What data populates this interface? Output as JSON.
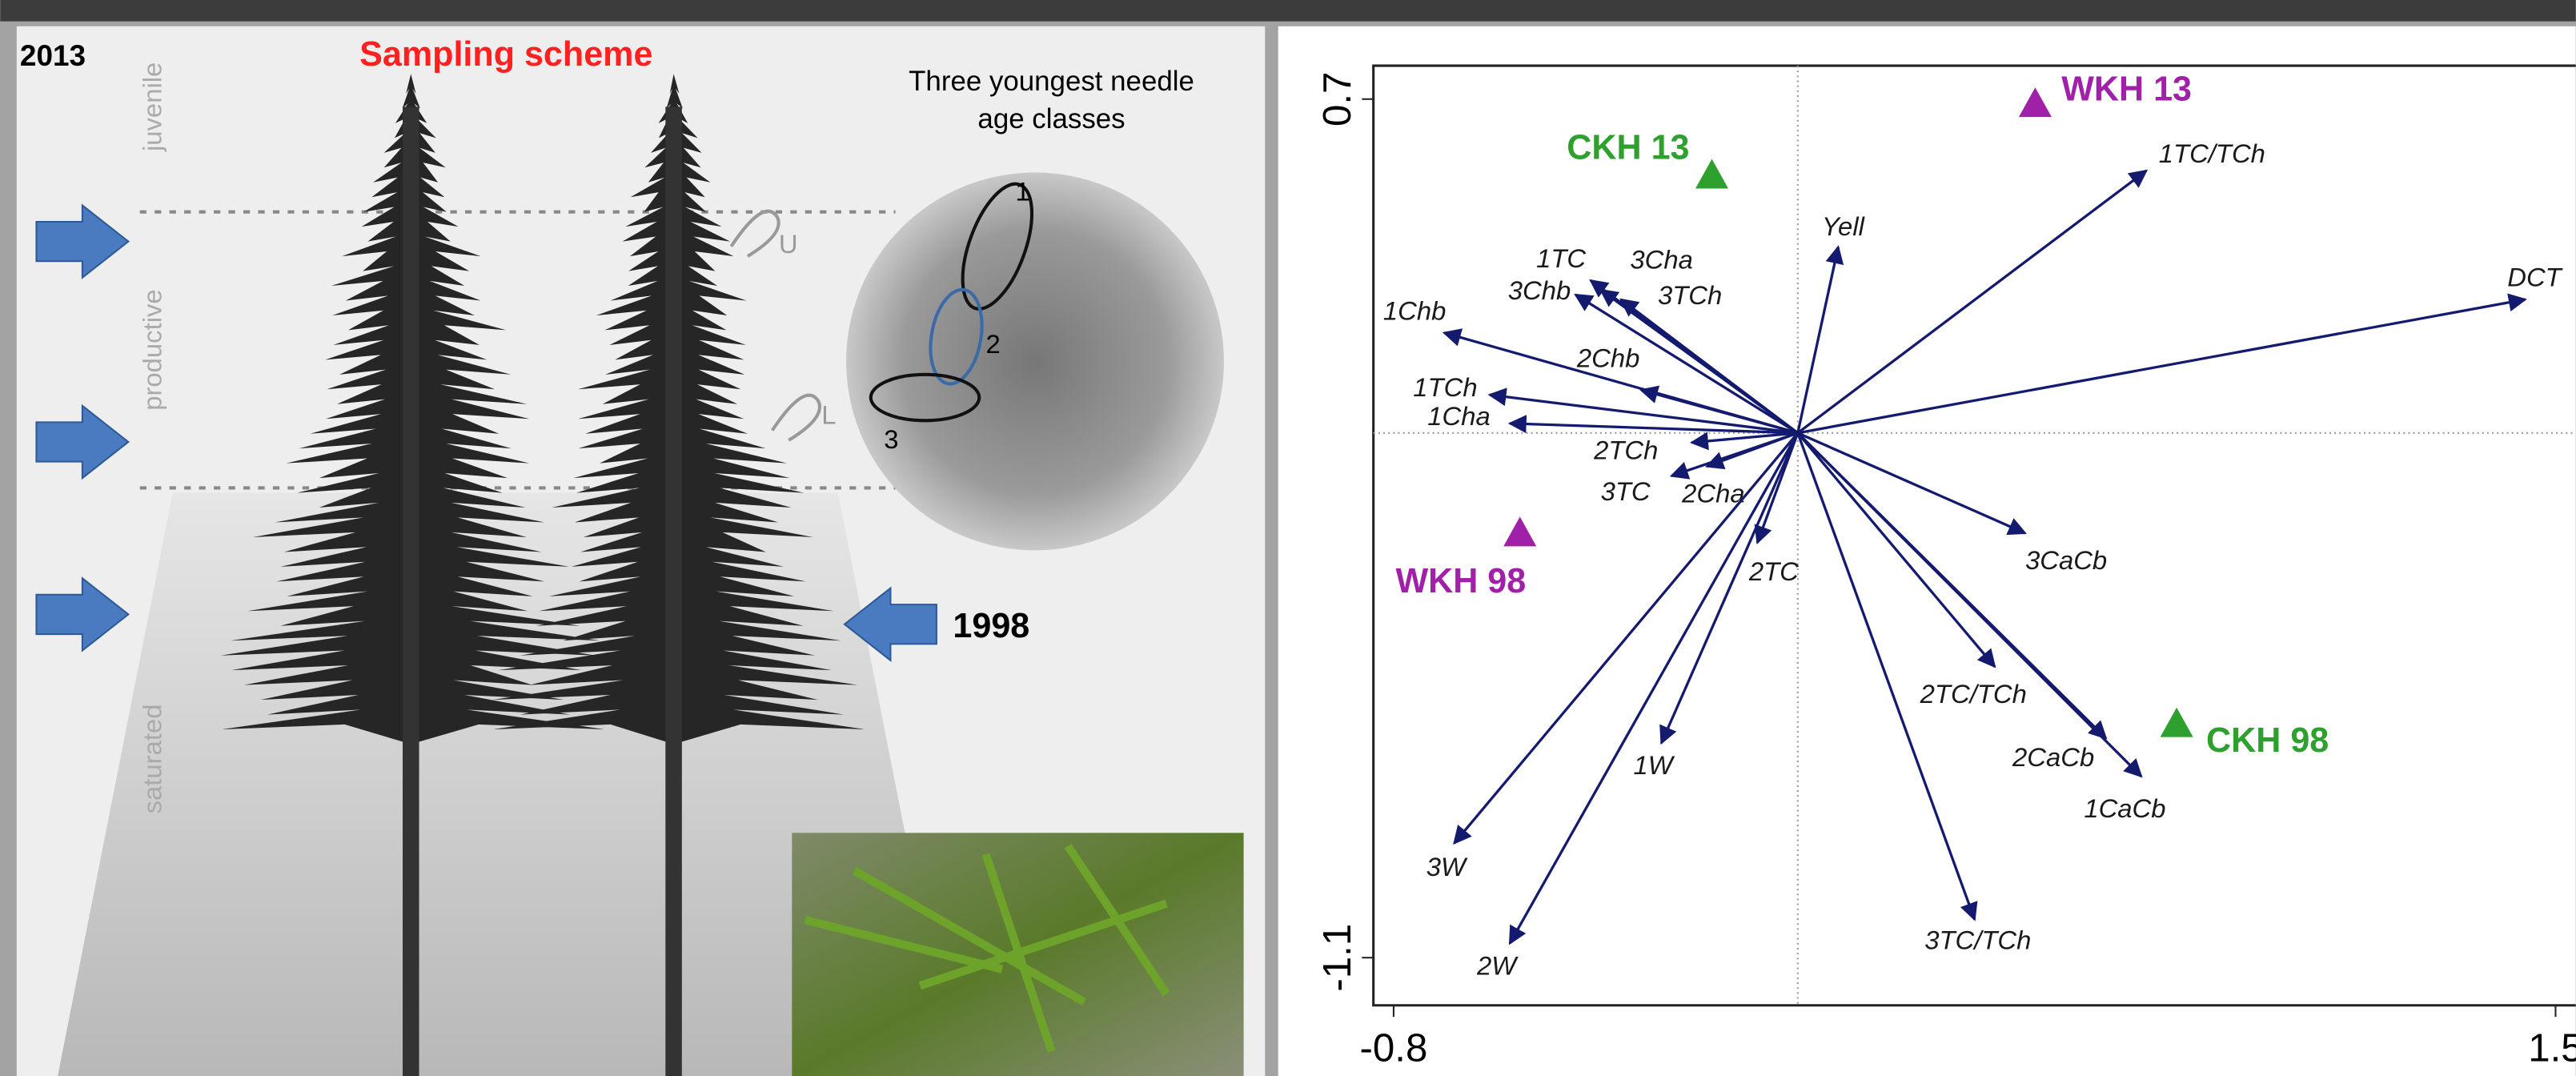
{
  "left_panel": {
    "year_top": "2013",
    "title": "Sampling scheme",
    "caption": [
      "Three youngest needle",
      "age classes"
    ],
    "zones": [
      "juvenile",
      "productive",
      "saturated"
    ],
    "crown_marks": [
      "U",
      "L"
    ],
    "needle_classes": [
      "1",
      "2",
      "3"
    ],
    "year_arrow": "1998"
  },
  "chart_data": {
    "type": "biplot",
    "xlim": [
      -0.84,
      1.54
    ],
    "ylim": [
      -1.2,
      0.77
    ],
    "xticks": [
      -0.8,
      1.5
    ],
    "yticks": [
      -1.1,
      0.7
    ],
    "zero_lines": true,
    "vectors": {
      "color": "#141a6e",
      "labels": [
        "1TC/TCh",
        "DCT",
        "Yell",
        "1TC",
        "3Cha",
        "3Chb",
        "3TCh",
        "1Chb",
        "2Chb",
        "1TCh",
        "1Cha",
        "2TCh",
        "3TC",
        "2Cha",
        "2TC",
        "3CaCb",
        "2TC/TCh",
        "2CaCb",
        "1CaCb",
        "3TC/TCh",
        "1W",
        "3W",
        "2W"
      ],
      "x": [
        0.69,
        1.44,
        0.08,
        -0.41,
        -0.39,
        -0.44,
        -0.35,
        -0.7,
        -0.31,
        -0.61,
        -0.57,
        -0.21,
        -0.25,
        -0.18,
        -0.08,
        0.45,
        0.39,
        0.61,
        0.68,
        0.35,
        -0.27,
        -0.68,
        -0.57
      ],
      "y": [
        0.55,
        0.28,
        0.39,
        0.32,
        0.3,
        0.29,
        0.28,
        0.21,
        0.09,
        0.08,
        0.02,
        -0.02,
        -0.09,
        -0.07,
        -0.23,
        -0.21,
        -0.49,
        -0.64,
        -0.72,
        -1.02,
        -0.65,
        -0.86,
        -1.07
      ]
    },
    "sites": {
      "labels": [
        "WKH 13",
        "CKH 13",
        "WKH 98",
        "CKH 98"
      ],
      "x": [
        0.47,
        -0.17,
        -0.55,
        0.75
      ],
      "y": [
        0.69,
        0.54,
        -0.21,
        -0.61
      ],
      "colors": [
        "#a020a8",
        "#2ea02e",
        "#a020a8",
        "#2ea02e"
      ]
    }
  }
}
